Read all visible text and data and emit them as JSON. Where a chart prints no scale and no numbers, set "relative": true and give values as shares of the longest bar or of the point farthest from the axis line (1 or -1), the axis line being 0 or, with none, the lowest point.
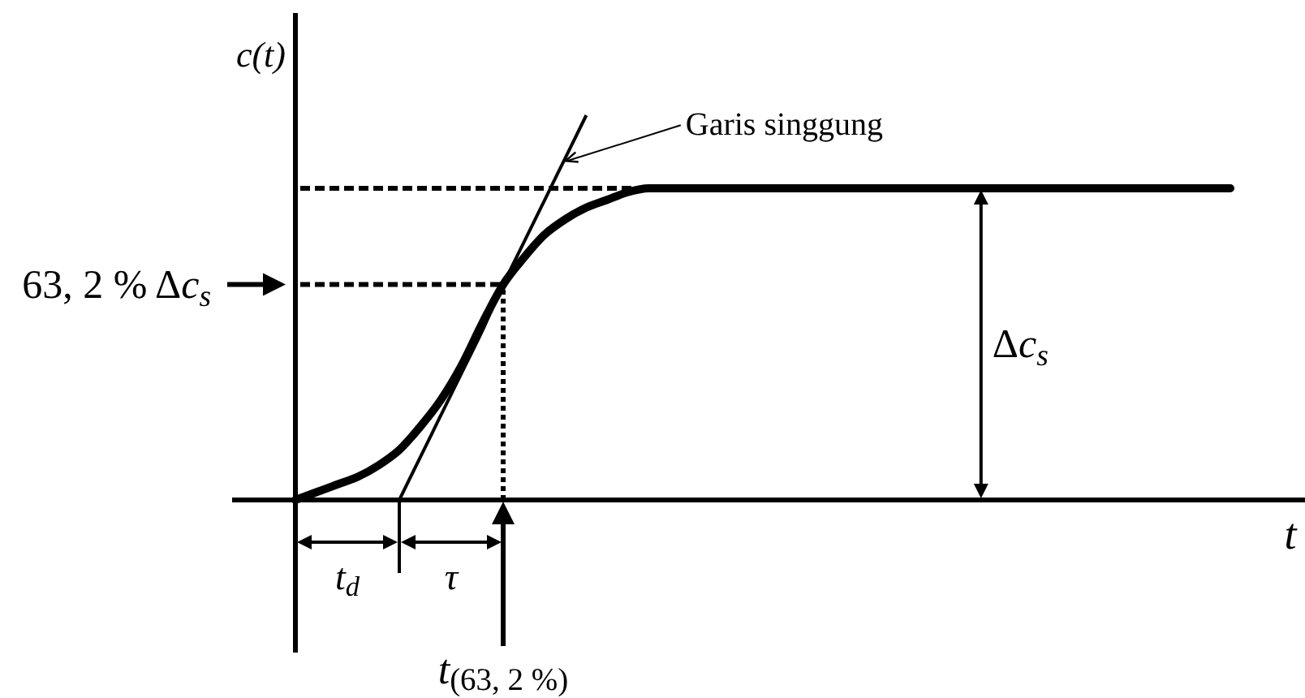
{
  "chart_data": {
    "type": "line",
    "relative": true,
    "xlabel": "t",
    "ylabel": "c(t)",
    "categories": [
      null,
      null,
      null,
      null,
      null,
      null,
      null,
      null,
      null,
      null,
      null,
      null,
      null,
      null,
      null,
      null,
      null,
      null,
      null,
      null,
      null,
      null,
      null,
      null,
      null,
      null,
      null,
      null,
      null,
      null,
      null,
      null,
      null,
      null,
      null,
      null,
      null,
      null,
      null,
      null,
      null,
      null,
      null,
      null,
      null,
      null
    ],
    "series": [
      {
        "color": "#000000",
        "values": [
          0,
          0.02,
          0.04,
          0.06,
          0.09,
          0.13,
          0.19,
          0.26,
          0.35,
          0.46,
          0.56,
          0.63,
          0.69,
          0.73,
          0.76,
          0.78,
          0.8,
          0.81,
          0.81,
          0.81,
          0.81,
          0.81,
          0.81,
          0.81,
          0.81,
          0.81,
          0.81,
          0.81,
          0.81,
          0.81,
          0.81,
          0.81,
          0.81,
          0.81,
          0.81,
          0.81,
          0.81,
          0.81,
          0.81,
          0.81,
          0.81,
          0.81,
          0.81,
          0.81,
          0.81,
          0.81
        ]
      },
      {
        "name": "Garis singgung",
        "type": "line",
        "color": "#000000",
        "values": [
          null,
          null,
          null,
          null,
          null,
          0,
          0.11,
          0.22,
          0.33,
          0.44,
          0.56,
          0.67,
          0.78,
          0.89,
          1,
          null,
          null,
          null,
          null,
          null,
          null,
          null,
          null,
          null,
          null,
          null,
          null,
          null,
          null,
          null,
          null,
          null,
          null,
          null,
          null,
          null,
          null,
          null,
          null,
          null,
          null,
          null,
          null,
          null,
          null,
          null
        ]
      },
      {
        "type": "line",
        "color": "#000000",
        "line_style": "dashed",
        "values": [
          0.81,
          0.81,
          0.81,
          0.81,
          0.81,
          0.81,
          0.81,
          0.81,
          0.81,
          0.81,
          0.81,
          0.81,
          0.81,
          0.81,
          0.81,
          0.81,
          0.81,
          0.81,
          null,
          null,
          null,
          null,
          null,
          null,
          null,
          null,
          null,
          null,
          null,
          null,
          null,
          null,
          null,
          null,
          null,
          null,
          null,
          null,
          null,
          null,
          null,
          null,
          null,
          null,
          null,
          null
        ]
      },
      {
        "name": "63, 2 % Δc$_{s}$",
        "type": "line",
        "color": "#000000",
        "line_style": "dashed",
        "values": [
          0.56,
          0.56,
          0.56,
          0.56,
          0.56,
          0.56,
          0.56,
          0.56,
          0.56,
          0.56,
          0.56,
          null,
          null,
          null,
          null,
          null,
          null,
          null,
          null,
          null,
          null,
          null,
          null,
          null,
          null,
          null,
          null,
          null,
          null,
          null,
          null,
          null,
          null,
          null,
          null,
          null,
          null,
          null,
          null,
          null,
          null,
          null,
          null,
          null,
          null,
          null
        ]
      }
    ],
    "annotations": [
      "Δc$_{s}$",
      "t$_{d}$",
      "τ",
      "t$_{(63, 2 %)}$"
    ]
  }
}
